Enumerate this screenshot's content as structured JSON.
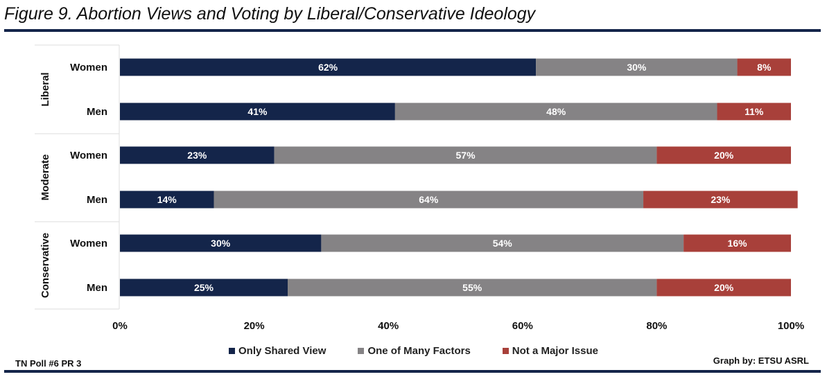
{
  "chart_data": {
    "type": "bar",
    "orientation": "horizontal",
    "stacked": true,
    "title": "Figure 9. Abortion Views and Voting by Liberal/Conservative Ideology",
    "groups": [
      {
        "name": "Liberal",
        "categories": [
          "Women",
          "Men"
        ]
      },
      {
        "name": "Moderate",
        "categories": [
          "Women",
          "Men"
        ]
      },
      {
        "name": "Conservative",
        "categories": [
          "Women",
          "Men"
        ]
      }
    ],
    "series": [
      {
        "name": "Only Shared View",
        "color": "#14254a",
        "values": [
          62,
          41,
          23,
          14,
          30,
          25
        ]
      },
      {
        "name": "One of Many Factors",
        "color": "#858385",
        "values": [
          30,
          48,
          57,
          64,
          54,
          55
        ]
      },
      {
        "name": "Not a Major Issue",
        "color": "#a8403a",
        "values": [
          8,
          11,
          20,
          23,
          16,
          20
        ]
      }
    ],
    "xlim": [
      0,
      100
    ],
    "xticks": [
      "0%",
      "20%",
      "40%",
      "60%",
      "80%",
      "100%"
    ],
    "legend_position": "bottom",
    "grid": false
  },
  "footer": {
    "left": "TN Poll #6 PR 3",
    "right": "Graph by: ETSU ASRL"
  }
}
